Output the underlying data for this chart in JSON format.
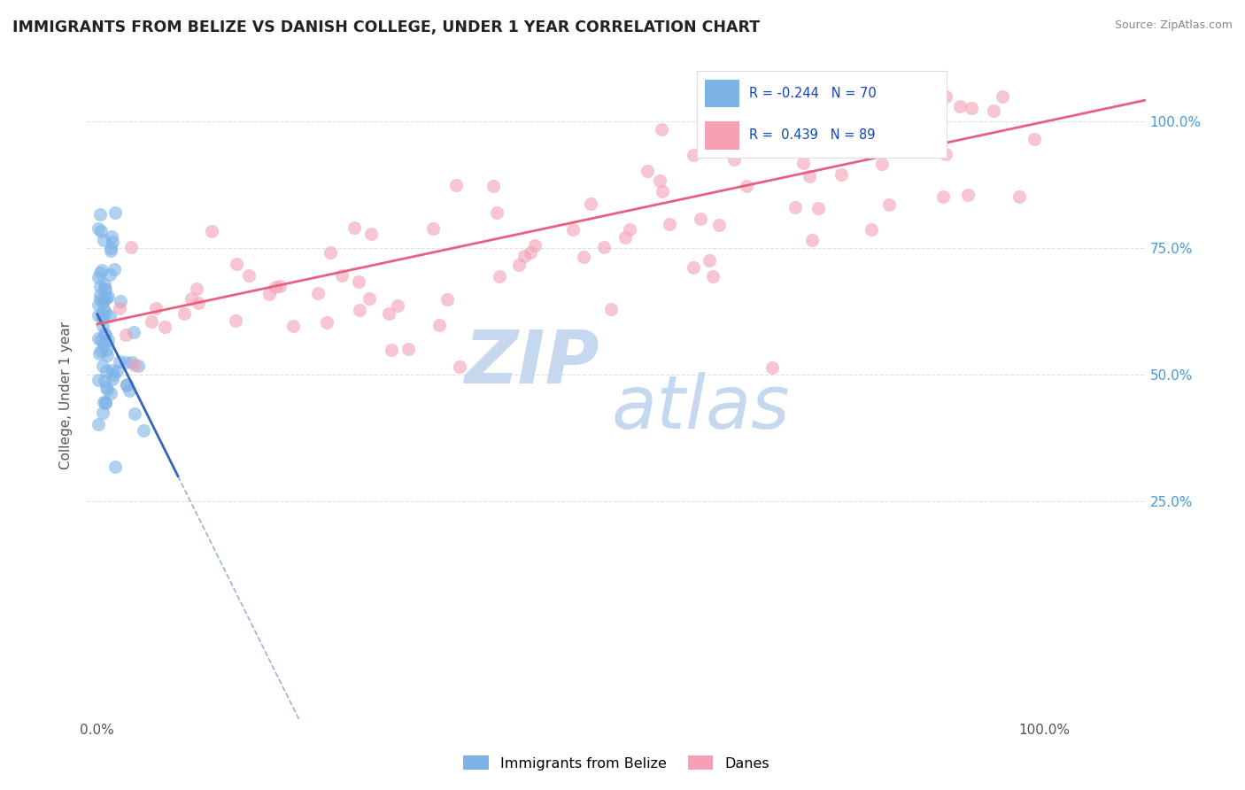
{
  "title": "IMMIGRANTS FROM BELIZE VS DANISH COLLEGE, UNDER 1 YEAR CORRELATION CHART",
  "source": "Source: ZipAtlas.com",
  "ylabel": "College, Under 1 year",
  "color_blue": "#7EB3E8",
  "color_pink": "#F4A0B5",
  "color_blue_line": "#3366BB",
  "color_pink_line": "#E86080",
  "watermark_zip": "ZIP",
  "watermark_atlas": "atlas",
  "legend_r1": "R = -0.244",
  "legend_n1": "N = 70",
  "legend_r2": "R =  0.439",
  "legend_n2": "N = 89",
  "legend_color1": "#7EB3E8",
  "legend_color2": "#F4A0B5",
  "tick_color": "#4499DD",
  "grid_color": "#CCCCCC",
  "yticks": [
    0.25,
    0.5,
    0.75,
    1.0
  ],
  "xticks": [
    0.0,
    1.0
  ]
}
